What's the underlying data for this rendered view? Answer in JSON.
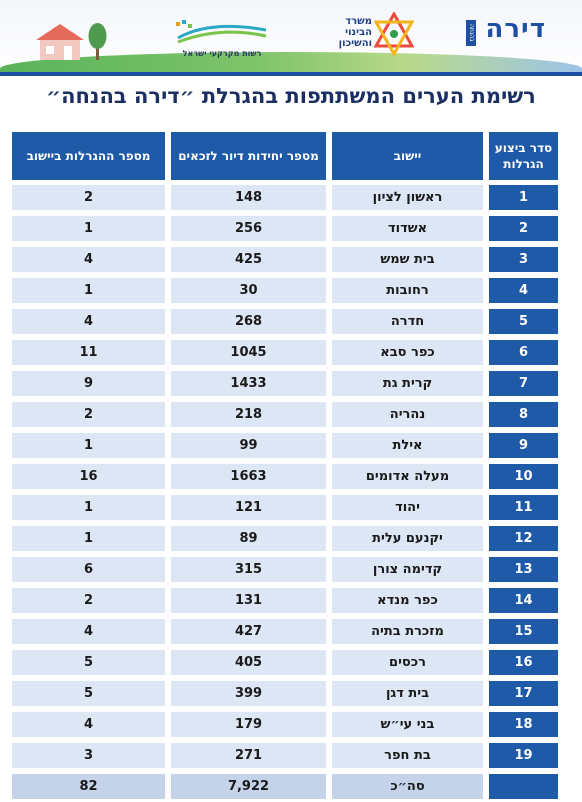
{
  "header": {
    "rmi_logo_text": "רשות מקרקעי ישראל",
    "ministry_logo_text": "משרד הבינוי והשיכון",
    "dira_logo_text": "דירה",
    "dira_logo_sub": "בהנחה"
  },
  "title": "רשימת הערים המשתתפות בהגרלת ״דירה בהנחה״",
  "table": {
    "headers": {
      "order": "סדר ביצוע הגרלות",
      "city": "יישוב",
      "units": "מספר יחידות דיור לזכאים",
      "lotteries": "מספר ההגרלות ביישוב"
    },
    "rows": [
      {
        "order": "1",
        "city": "ראשון לציון",
        "units": "148",
        "lotteries": "2"
      },
      {
        "order": "2",
        "city": "אשדוד",
        "units": "256",
        "lotteries": "1"
      },
      {
        "order": "3",
        "city": "בית שמש",
        "units": "425",
        "lotteries": "4"
      },
      {
        "order": "4",
        "city": "רחובות",
        "units": "30",
        "lotteries": "1"
      },
      {
        "order": "5",
        "city": "חדרה",
        "units": "268",
        "lotteries": "4"
      },
      {
        "order": "6",
        "city": "כפר סבא",
        "units": "1045",
        "lotteries": "11"
      },
      {
        "order": "7",
        "city": "קרית גת",
        "units": "1433",
        "lotteries": "9"
      },
      {
        "order": "8",
        "city": "נהריה",
        "units": "218",
        "lotteries": "2"
      },
      {
        "order": "9",
        "city": "אילת",
        "units": "99",
        "lotteries": "1"
      },
      {
        "order": "10",
        "city": "מעלה אדומים",
        "units": "1663",
        "lotteries": "16"
      },
      {
        "order": "11",
        "city": "יהוד",
        "units": "121",
        "lotteries": "1"
      },
      {
        "order": "12",
        "city": "יקנעם עלית",
        "units": "89",
        "lotteries": "1"
      },
      {
        "order": "13",
        "city": "קדימה צורן",
        "units": "315",
        "lotteries": "6"
      },
      {
        "order": "14",
        "city": "כפר מנדא",
        "units": "131",
        "lotteries": "2"
      },
      {
        "order": "15",
        "city": "מזכרת בתיה",
        "units": "427",
        "lotteries": "4"
      },
      {
        "order": "16",
        "city": "רכסים",
        "units": "405",
        "lotteries": "5"
      },
      {
        "order": "17",
        "city": "בית דגן",
        "units": "399",
        "lotteries": "5"
      },
      {
        "order": "18",
        "city": "בני עי״ש",
        "units": "179",
        "lotteries": "4"
      },
      {
        "order": "19",
        "city": "בת חפר",
        "units": "271",
        "lotteries": "3"
      }
    ],
    "total": {
      "order": "",
      "city": "סה״כ",
      "units": "7,922",
      "lotteries": "82"
    }
  },
  "colors": {
    "header_blue": "#1f5aa8",
    "row_bg": "#dde6f4",
    "total_bg": "#c4d3ea",
    "title": "#1b2f63"
  }
}
